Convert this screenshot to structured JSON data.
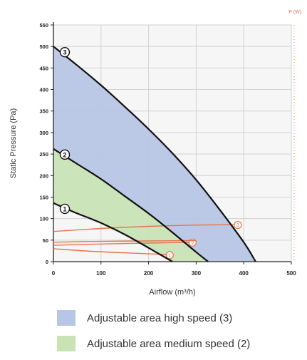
{
  "chart_data": {
    "type": "line",
    "ylabel": "Static Pressure (Pa)",
    "xlabel": "Airflow (m³/h)",
    "right_axis_label": "P (W)",
    "xlim": [
      0,
      500
    ],
    "ylim": [
      0,
      550
    ],
    "x_ticks": [
      0,
      100,
      200,
      300,
      400,
      500
    ],
    "y_ticks": [
      0,
      50,
      100,
      150,
      200,
      250,
      300,
      350,
      400,
      450,
      500,
      550
    ],
    "grid": true,
    "pressure_curves": [
      {
        "label": "1",
        "x": [
          0,
          50,
          100,
          150,
          200,
          250
        ],
        "y": [
          136,
          112,
          90,
          63,
          32,
          0
        ]
      },
      {
        "label": "2",
        "x": [
          0,
          50,
          100,
          150,
          200,
          250,
          300,
          325
        ],
        "y": [
          262,
          227,
          192,
          152,
          112,
          68,
          22,
          0
        ]
      },
      {
        "label": "3",
        "x": [
          0,
          50,
          100,
          150,
          200,
          250,
          300,
          350,
          400,
          425
        ],
        "y": [
          500,
          456,
          410,
          360,
          308,
          252,
          190,
          120,
          45,
          0
        ]
      }
    ],
    "power_curves": [
      {
        "label": "1",
        "x": [
          0,
          80,
          160,
          252
        ],
        "y": [
          30,
          24,
          20,
          16
        ]
      },
      {
        "label": "2",
        "x": [
          0,
          100,
          200,
          300
        ],
        "y": [
          38,
          41,
          43,
          45
        ]
      },
      {
        "label": "3",
        "x": [
          0,
          100,
          200,
          300,
          395
        ],
        "y": [
          70,
          77,
          82,
          85,
          86
        ]
      },
      {
        "label": "unlabeled",
        "x": [
          0,
          100,
          200,
          300
        ],
        "y": [
          45,
          47,
          48,
          49
        ]
      }
    ],
    "areas": [
      {
        "name": "Adjustable area high speed (3)",
        "color": "#b7c6e6",
        "between": [
          "3",
          "2"
        ]
      },
      {
        "name": "Adjustable area medium speed (2)",
        "color": "#c9e3b5",
        "between": [
          "2",
          "1"
        ]
      }
    ],
    "colors": {
      "pressure_line": "#111111",
      "power_line": "#e8734a",
      "grid": "#d2d2d2",
      "right_axis": "#e8734a"
    }
  },
  "legend": {
    "items": [
      {
        "label": "Adjustable area high speed (3)",
        "color": "#b7c6e6"
      },
      {
        "label": "Adjustable area medium speed (2)",
        "color": "#c9e3b5"
      }
    ]
  }
}
